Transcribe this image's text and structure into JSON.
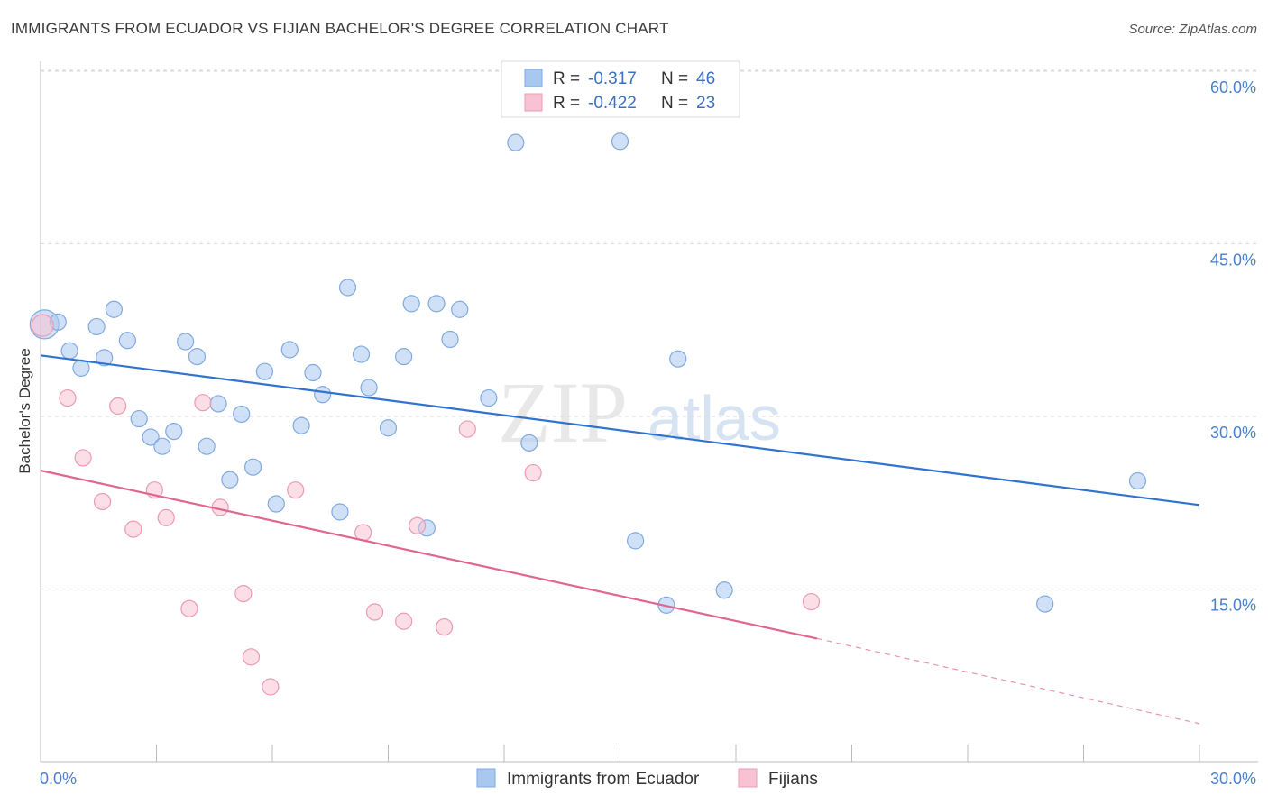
{
  "title": "IMMIGRANTS FROM ECUADOR VS FIJIAN BACHELOR'S DEGREE CORRELATION CHART",
  "source": "Source: ZipAtlas.com",
  "watermark": {
    "zip": "ZIP",
    "atlas": "atlas"
  },
  "legend": {
    "r_label": "R =",
    "n_label": "N =",
    "series": [
      {
        "r": "-0.317",
        "n": "46",
        "color": "#a9c8f0",
        "stroke": "#7fa9e0"
      },
      {
        "r": "-0.422",
        "n": "23",
        "color": "#f7c2d2",
        "stroke": "#ec9ab4"
      }
    ]
  },
  "bottom_legend": [
    "Immigrants from Ecuador",
    "Fijians"
  ],
  "chart_data": {
    "type": "scatter",
    "ylabel": "Bachelor's Degree",
    "xlim": [
      0,
      30
    ],
    "ylim": [
      0,
      61
    ],
    "x_tick_labels": [
      "0.0%",
      "30.0%"
    ],
    "y_ticks": [
      15,
      30,
      45,
      60
    ],
    "y_tick_labels": [
      "15.0%",
      "30.0%",
      "45.0%",
      "60.0%"
    ],
    "series": [
      {
        "name": "Immigrants from Ecuador",
        "color": "#a9c8f0",
        "line_color": "#2f72d0",
        "trend": {
          "x0": 0,
          "y0": 35.3,
          "x1": 30,
          "y1": 22.3
        },
        "points": [
          [
            0.1,
            38.0
          ],
          [
            0.45,
            38.2
          ],
          [
            0.75,
            35.7
          ],
          [
            1.05,
            34.2
          ],
          [
            1.45,
            37.8
          ],
          [
            1.65,
            35.1
          ],
          [
            1.9,
            39.3
          ],
          [
            2.25,
            36.6
          ],
          [
            2.55,
            29.8
          ],
          [
            2.85,
            28.2
          ],
          [
            3.15,
            27.4
          ],
          [
            3.45,
            28.7
          ],
          [
            3.75,
            36.5
          ],
          [
            4.05,
            35.2
          ],
          [
            4.3,
            27.4
          ],
          [
            4.6,
            31.1
          ],
          [
            4.9,
            24.5
          ],
          [
            5.2,
            30.2
          ],
          [
            5.5,
            25.6
          ],
          [
            5.8,
            33.9
          ],
          [
            6.1,
            22.4
          ],
          [
            6.45,
            35.8
          ],
          [
            6.75,
            29.2
          ],
          [
            7.05,
            33.8
          ],
          [
            7.3,
            31.9
          ],
          [
            7.75,
            21.7
          ],
          [
            7.95,
            41.2
          ],
          [
            8.3,
            35.4
          ],
          [
            8.5,
            32.5
          ],
          [
            9.0,
            29.0
          ],
          [
            9.4,
            35.2
          ],
          [
            9.6,
            39.8
          ],
          [
            10.0,
            20.3
          ],
          [
            10.25,
            39.8
          ],
          [
            10.6,
            36.7
          ],
          [
            10.85,
            39.3
          ],
          [
            11.6,
            31.6
          ],
          [
            12.3,
            53.8
          ],
          [
            12.65,
            27.7
          ],
          [
            15.0,
            53.9
          ],
          [
            15.4,
            19.2
          ],
          [
            16.2,
            13.6
          ],
          [
            16.5,
            35.0
          ],
          [
            17.7,
            14.9
          ],
          [
            26.0,
            13.7
          ],
          [
            28.4,
            24.4
          ]
        ]
      },
      {
        "name": "Fijians",
        "color": "#f7c2d2",
        "line_color": "#e06690",
        "trend": {
          "x0": 0,
          "y0": 25.3,
          "x1": 20.1,
          "y1": 10.7
        },
        "trend_dash": {
          "x0": 20.1,
          "y0": 10.7,
          "x1": 30,
          "y1": 3.3
        },
        "points": [
          [
            0.05,
            37.9
          ],
          [
            0.7,
            31.6
          ],
          [
            1.1,
            26.4
          ],
          [
            1.6,
            22.6
          ],
          [
            2.0,
            30.9
          ],
          [
            2.4,
            20.2
          ],
          [
            2.95,
            23.6
          ],
          [
            3.25,
            21.2
          ],
          [
            3.85,
            13.3
          ],
          [
            4.2,
            31.2
          ],
          [
            4.65,
            22.1
          ],
          [
            5.25,
            14.6
          ],
          [
            5.45,
            9.1
          ],
          [
            5.95,
            6.5
          ],
          [
            6.6,
            23.6
          ],
          [
            8.35,
            19.9
          ],
          [
            8.65,
            13.0
          ],
          [
            9.4,
            12.2
          ],
          [
            9.75,
            20.5
          ],
          [
            10.45,
            11.7
          ],
          [
            11.05,
            28.9
          ],
          [
            12.75,
            25.1
          ],
          [
            19.95,
            13.9
          ]
        ]
      }
    ]
  }
}
